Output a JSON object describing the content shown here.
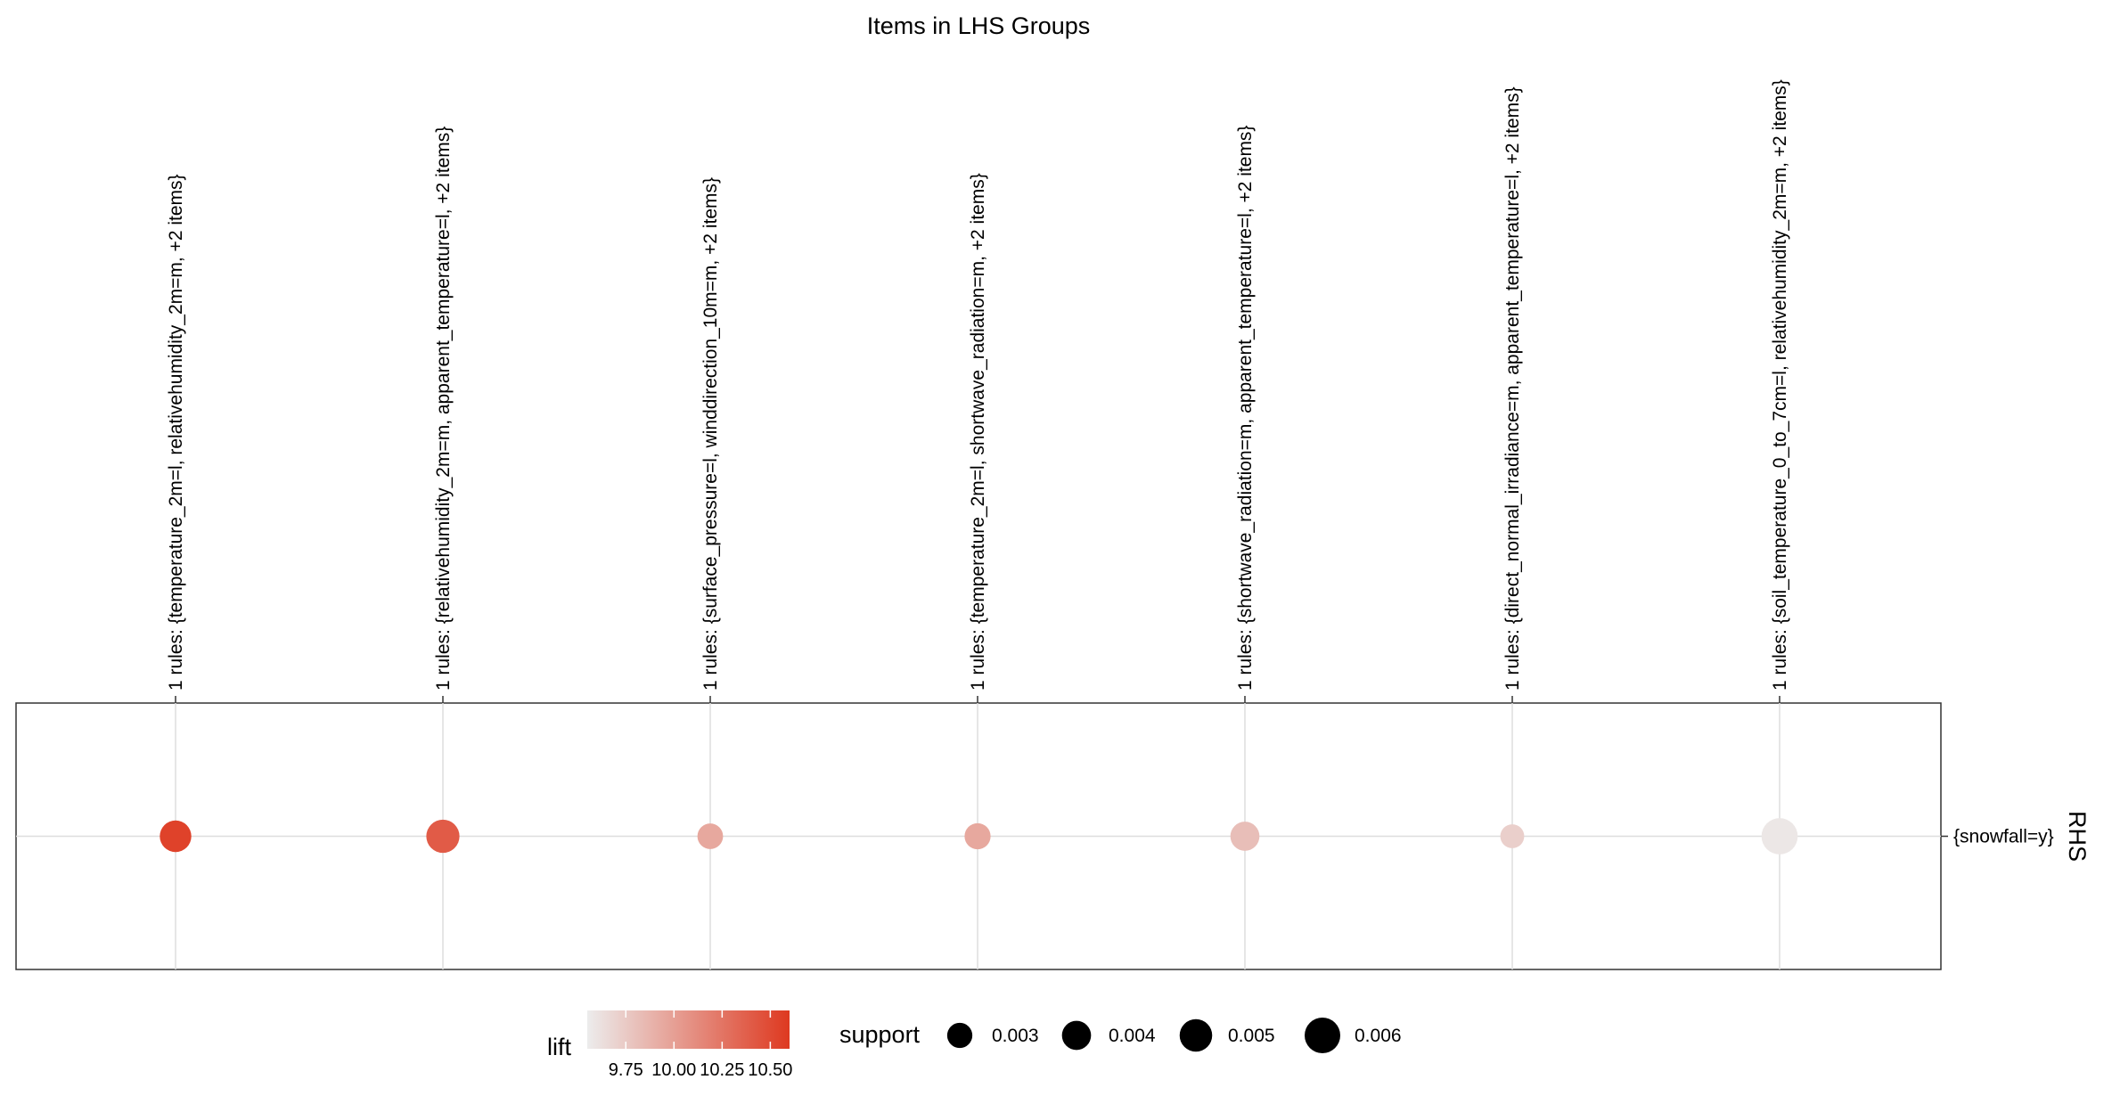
{
  "chart_data": {
    "type": "scatter",
    "title": "Items in LHS Groups",
    "facet_label": "RHS",
    "x_categories": [
      "1 rules: {temperature_2m=l, relativehumidity_2m=m, +2 items}",
      "1 rules: {relativehumidity_2m=m, apparent_temperature=l, +2 items}",
      "1 rules: {surface_pressure=l, winddirection_10m=m, +2 items}",
      "1 rules: {temperature_2m=l, shortwave_radiation=m, +2 items}",
      "1 rules: {shortwave_radiation=m, apparent_temperature=l, +2 items}",
      "1 rules: {direct_normal_irradiance=m, apparent_temperature=l, +2 items}",
      "1 rules: {soil_temperature_0_to_7cm=l, relativehumidity_2m=m, +2 items}"
    ],
    "y_categories": [
      "{snowfall=y}"
    ],
    "points": [
      {
        "x": 0,
        "y": 0,
        "support": 0.0047,
        "lift": 10.55
      },
      {
        "x": 1,
        "y": 0,
        "support": 0.0052,
        "lift": 10.4
      },
      {
        "x": 2,
        "y": 0,
        "support": 0.0031,
        "lift": 9.95
      },
      {
        "x": 3,
        "y": 0,
        "support": 0.0032,
        "lift": 9.95
      },
      {
        "x": 4,
        "y": 0,
        "support": 0.004,
        "lift": 9.82
      },
      {
        "x": 5,
        "y": 0,
        "support": 0.0027,
        "lift": 9.72
      },
      {
        "x": 6,
        "y": 0,
        "support": 0.0062,
        "lift": 9.58
      }
    ],
    "legend_lift": {
      "title": "lift",
      "range": [
        9.55,
        10.6
      ],
      "ticks": [
        9.75,
        10.0,
        10.25,
        10.5
      ],
      "tick_labels": [
        "9.75",
        "10.00",
        "10.25",
        "10.50"
      ],
      "color_low": "#ECECEC",
      "color_high": "#DE3920"
    },
    "legend_support": {
      "title": "support",
      "values": [
        0.003,
        0.004,
        0.005,
        0.006
      ],
      "labels": [
        "0.003",
        "0.004",
        "0.005",
        "0.006"
      ]
    },
    "grid": true,
    "legend_position": "bottom"
  }
}
